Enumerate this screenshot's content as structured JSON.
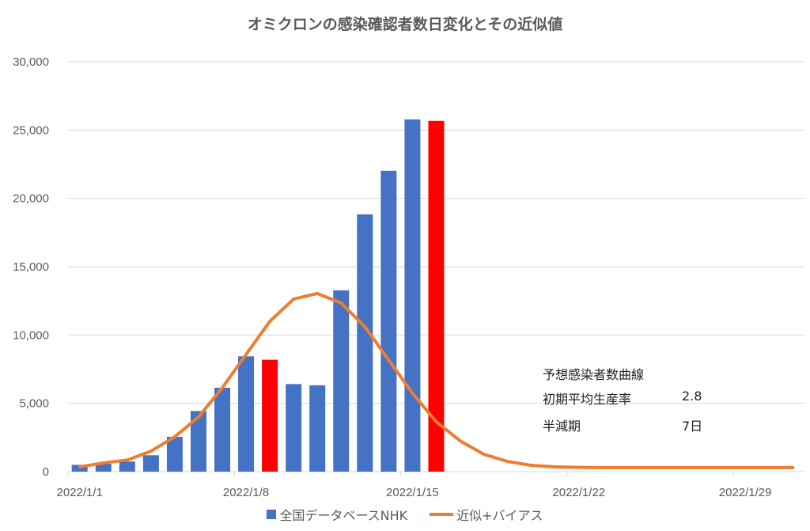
{
  "chart_data": {
    "type": "bar",
    "title": "オミクロンの感染確認者数日変化とその近似値",
    "xlabel": "",
    "ylabel": "",
    "ylim": [
      0,
      30000
    ],
    "yticks": [
      "0",
      "5,000",
      "10,000",
      "15,000",
      "20,000",
      "25,000",
      "30,000"
    ],
    "ytick_values": [
      0,
      5000,
      10000,
      15000,
      20000,
      25000,
      30000
    ],
    "xtick_labels": [
      "2022/1/1",
      "2022/1/8",
      "2022/1/15",
      "2022/1/22",
      "2022/1/29"
    ],
    "xtick_days": [
      1,
      8,
      15,
      22,
      29
    ],
    "days": 31,
    "grid": true,
    "legend_position": "bottom",
    "series": [
      {
        "name": "全国データベースNHK",
        "type": "bar",
        "color": "#4472C4",
        "highlight_color": "#FF0000",
        "highlight_days": [
          9,
          16
        ],
        "values": [
          500,
          580,
          740,
          1200,
          2550,
          4440,
          6140,
          8440,
          8190,
          6410,
          6320,
          13270,
          18830,
          22020,
          25780,
          25670
        ]
      },
      {
        "name": "近似+バイアス",
        "type": "line",
        "color": "#ED7D31",
        "values": [
          350,
          640,
          850,
          1500,
          2550,
          4000,
          6140,
          8580,
          11000,
          12630,
          13040,
          12340,
          10600,
          8170,
          5740,
          3650,
          2260,
          1270,
          750,
          460,
          350,
          310,
          300,
          300,
          300,
          300,
          300,
          300,
          300,
          300,
          300
        ]
      }
    ],
    "annotations": {
      "heading": "予想感染者数曲線",
      "rate_label": "初期平均生産率",
      "rate_value": "2.8",
      "halflife_label": "半減期",
      "halflife_value": "7日"
    }
  }
}
